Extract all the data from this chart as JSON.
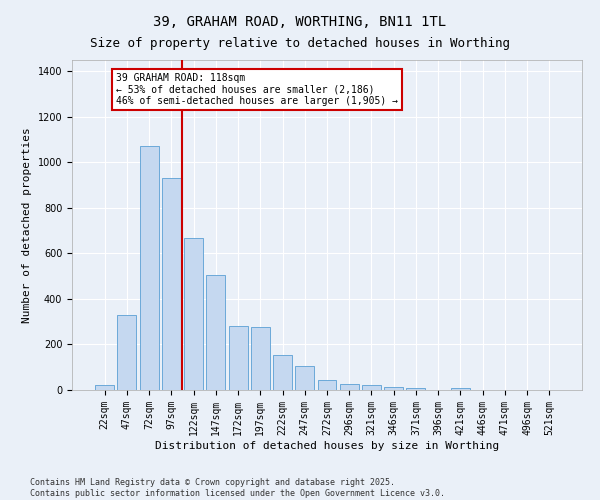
{
  "title1": "39, GRAHAM ROAD, WORTHING, BN11 1TL",
  "title2": "Size of property relative to detached houses in Worthing",
  "xlabel": "Distribution of detached houses by size in Worthing",
  "ylabel": "Number of detached properties",
  "categories": [
    "22sqm",
    "47sqm",
    "72sqm",
    "97sqm",
    "122sqm",
    "147sqm",
    "172sqm",
    "197sqm",
    "222sqm",
    "247sqm",
    "272sqm",
    "296sqm",
    "321sqm",
    "346sqm",
    "371sqm",
    "396sqm",
    "421sqm",
    "446sqm",
    "471sqm",
    "496sqm",
    "521sqm"
  ],
  "values": [
    20,
    330,
    1070,
    930,
    670,
    505,
    280,
    275,
    155,
    105,
    45,
    25,
    20,
    15,
    10,
    0,
    8,
    0,
    0,
    0,
    0
  ],
  "bar_color": "#c5d8f0",
  "bar_edge_color": "#5a9fd4",
  "vline_x_index": 4,
  "vline_color": "#cc0000",
  "annotation_text": "39 GRAHAM ROAD: 118sqm\n← 53% of detached houses are smaller (2,186)\n46% of semi-detached houses are larger (1,905) →",
  "annotation_box_color": "#cc0000",
  "annotation_bg": "#ffffff",
  "ylim": [
    0,
    1450
  ],
  "yticks": [
    0,
    200,
    400,
    600,
    800,
    1000,
    1200,
    1400
  ],
  "bg_color": "#eaf0f8",
  "grid_color": "#ffffff",
  "footer": "Contains HM Land Registry data © Crown copyright and database right 2025.\nContains public sector information licensed under the Open Government Licence v3.0.",
  "title_fontsize": 10,
  "subtitle_fontsize": 9,
  "tick_fontsize": 7,
  "ylabel_fontsize": 8,
  "xlabel_fontsize": 8
}
